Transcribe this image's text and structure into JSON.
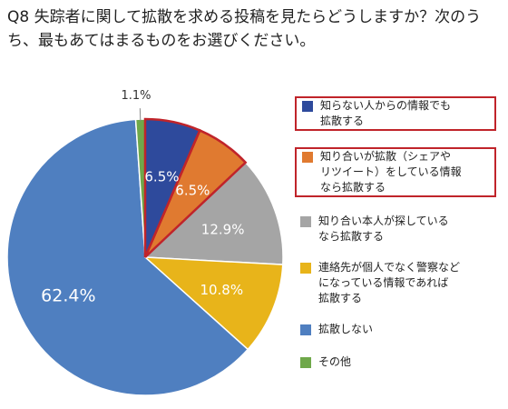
{
  "question": "Q8 失踪者に関して拡散を求める投稿を見たらどうしますか？次のうち、最もあてはまるものをお選びください。",
  "chart_data": {
    "type": "pie",
    "title": "",
    "start": "12 o'clock",
    "direction": "clockwise",
    "slices": [
      {
        "label": "知らない人からの情報でも\n拡散する",
        "value": 6.5,
        "value_label": "6.5%",
        "color": "#2e4a9c",
        "highlighted": true
      },
      {
        "label": "知り合いが拡散（シェアや\nリツイート）をしている情報\nなら拡散する",
        "value": 6.5,
        "value_label": "6.5%",
        "color": "#e07a30",
        "highlighted": true
      },
      {
        "label": "知り合い本人が探している\nなら拡散する",
        "value": 12.9,
        "value_label": "12.9%",
        "color": "#a5a5a5",
        "highlighted": false
      },
      {
        "label": "連絡先が個人でなく警察など\nになっている情報であれば\n拡散する",
        "value": 10.8,
        "value_label": "10.8%",
        "color": "#e8b41a",
        "highlighted": false
      },
      {
        "label": "拡散しない",
        "value": 62.4,
        "value_label": "62.4%",
        "color": "#4f7fc0",
        "highlighted": false
      },
      {
        "label": "その他",
        "value": 1.1,
        "value_label": "1.1%",
        "color": "#6fa84a",
        "highlighted": false
      }
    ],
    "highlight_color": "#c0242a",
    "legend_placement": "right"
  }
}
